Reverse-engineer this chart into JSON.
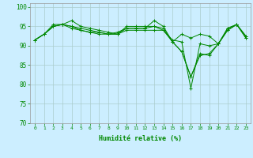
{
  "title": "",
  "xlabel": "Humidité relative (%)",
  "ylabel": "",
  "background_color": "#cceeff",
  "grid_color": "#aacccc",
  "line_color": "#008800",
  "xlim": [
    -0.5,
    23.5
  ],
  "ylim": [
    70,
    101
  ],
  "yticks": [
    70,
    75,
    80,
    85,
    90,
    95,
    100
  ],
  "xticks": [
    0,
    1,
    2,
    3,
    4,
    5,
    6,
    7,
    8,
    9,
    10,
    11,
    12,
    13,
    14,
    15,
    16,
    17,
    18,
    19,
    20,
    21,
    22,
    23
  ],
  "series": [
    [
      91.5,
      93.0,
      95.0,
      95.5,
      96.5,
      95.0,
      94.5,
      94.0,
      93.5,
      93.0,
      95.0,
      95.0,
      95.0,
      95.0,
      94.5,
      91.0,
      93.0,
      92.0,
      93.0,
      92.5,
      90.5,
      94.5,
      95.5,
      92.5
    ],
    [
      91.5,
      93.0,
      95.0,
      95.5,
      95.0,
      94.5,
      94.0,
      93.5,
      93.0,
      93.5,
      94.5,
      94.5,
      94.5,
      96.5,
      95.0,
      91.0,
      88.5,
      82.0,
      88.0,
      87.5,
      90.5,
      94.0,
      95.5,
      92.5
    ],
    [
      91.5,
      93.0,
      95.5,
      95.5,
      94.5,
      94.0,
      93.5,
      93.0,
      93.0,
      93.0,
      94.0,
      94.0,
      94.0,
      94.0,
      94.0,
      91.0,
      88.5,
      82.0,
      87.5,
      88.0,
      90.5,
      94.0,
      95.5,
      92.0
    ],
    [
      91.5,
      93.0,
      95.0,
      95.5,
      95.0,
      94.0,
      93.5,
      93.5,
      93.0,
      93.0,
      94.5,
      94.5,
      94.5,
      95.0,
      94.0,
      91.5,
      91.0,
      79.0,
      90.5,
      90.0,
      90.5,
      94.5,
      95.5,
      92.0
    ]
  ]
}
